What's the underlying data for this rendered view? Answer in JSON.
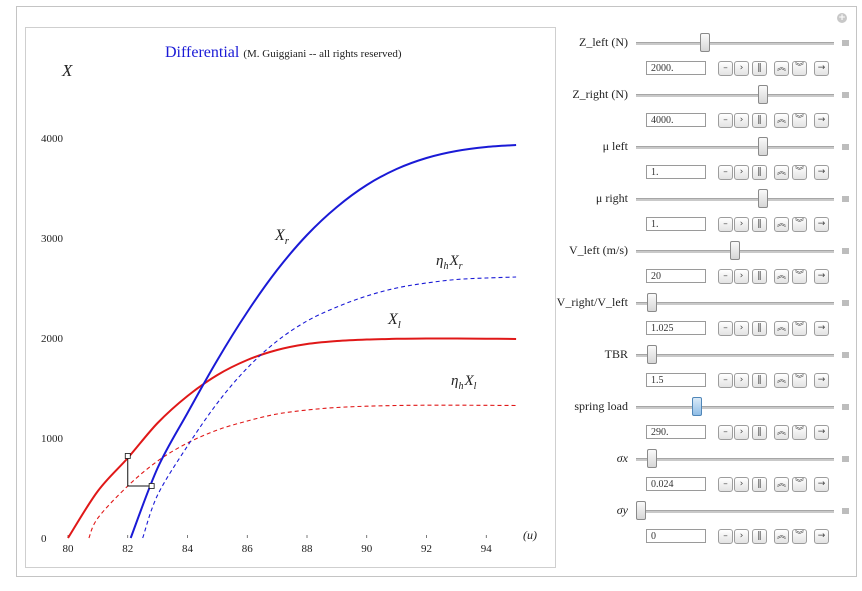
{
  "plot": {
    "title_main": "Differential",
    "title_sub": "(M. Guiggiani -- all rights reserved)",
    "y_axis_label": "X",
    "x_axis_label": "(u)",
    "x_ticks": [
      "80",
      "82",
      "84",
      "86",
      "88",
      "90",
      "92",
      "94"
    ],
    "y_ticks": [
      "0",
      "1000",
      "2000",
      "3000",
      "4000"
    ],
    "curve_labels": {
      "xr": {
        "main": "X",
        "sub": "r"
      },
      "ehxr": {
        "eta": "η",
        "h": "h",
        "main": "X",
        "sub": "r"
      },
      "xl": {
        "main": "X",
        "sub": "l"
      },
      "ehxl": {
        "eta": "η",
        "h": "h",
        "main": "X",
        "sub": "l"
      }
    },
    "colors": {
      "red": "#e01818",
      "blue": "#1a1ad6",
      "title": "#1a1ad6"
    }
  },
  "chart_data": {
    "type": "line",
    "xlabel": "(u)",
    "ylabel": "X",
    "xlim": [
      80,
      95
    ],
    "ylim": [
      0,
      4000
    ],
    "series": [
      {
        "name": "X_l",
        "style": "solid",
        "color": "#e01818",
        "x": [
          80,
          81,
          82,
          83,
          84,
          85,
          86,
          87,
          88,
          89,
          90,
          91,
          92,
          93,
          94,
          95
        ],
        "y": [
          0,
          470,
          800,
          1150,
          1420,
          1630,
          1780,
          1880,
          1940,
          1970,
          1985,
          1992,
          1995,
          1995,
          1993,
          1990
        ]
      },
      {
        "name": "η_h X_l",
        "style": "dashed",
        "color": "#e01818",
        "x": [
          80.7,
          81,
          82,
          83,
          84,
          85,
          86,
          87,
          88,
          89,
          90,
          91,
          92,
          93,
          94,
          95
        ],
        "y": [
          0,
          200,
          520,
          770,
          950,
          1080,
          1170,
          1240,
          1280,
          1305,
          1318,
          1325,
          1328,
          1328,
          1327,
          1325
        ]
      },
      {
        "name": "X_r",
        "style": "solid",
        "color": "#1a1ad6",
        "x": [
          82.1,
          83,
          84,
          85,
          86,
          87,
          88,
          89,
          90,
          91,
          92,
          93,
          94,
          95
        ],
        "y": [
          0,
          700,
          1250,
          1780,
          2260,
          2680,
          3030,
          3310,
          3530,
          3690,
          3800,
          3870,
          3910,
          3930
        ]
      },
      {
        "name": "η_h X_r",
        "style": "dashed",
        "color": "#1a1ad6",
        "x": [
          82.5,
          83,
          84,
          85,
          86,
          87,
          88,
          89,
          90,
          91,
          92,
          93,
          94,
          95
        ],
        "y": [
          0,
          430,
          920,
          1350,
          1700,
          1970,
          2170,
          2310,
          2420,
          2500,
          2550,
          2585,
          2600,
          2610
        ]
      }
    ],
    "marker": {
      "p1": [
        82,
        820
      ],
      "p2": [
        82.8,
        520
      ],
      "corner": [
        82,
        520
      ]
    }
  },
  "controls": [
    {
      "label": "Z_left (N)",
      "value": "2000.",
      "level": 0.34,
      "italic": false,
      "active": false
    },
    {
      "label": "Z_right (N)",
      "value": "4000.",
      "level": 0.65,
      "italic": false,
      "active": false
    },
    {
      "label": "μ left",
      "value": "1.",
      "level": 0.65,
      "italic": false,
      "active": false
    },
    {
      "label": "μ right",
      "value": "1.",
      "level": 0.65,
      "italic": false,
      "active": false
    },
    {
      "label": "V_left (m/s)",
      "value": "20",
      "level": 0.5,
      "italic": false,
      "active": false
    },
    {
      "label": "V_right/V_left",
      "value": "1.025",
      "level": 0.06,
      "italic": false,
      "active": false
    },
    {
      "label": "TBR",
      "value": "1.5",
      "level": 0.06,
      "italic": false,
      "active": false
    },
    {
      "label": "spring load",
      "value": "290.",
      "level": 0.3,
      "italic": false,
      "active": true
    },
    {
      "label": "σx",
      "value": "0.024",
      "level": 0.06,
      "italic": true,
      "active": false
    },
    {
      "label": "σy",
      "value": "0",
      "level": 0.0,
      "italic": true,
      "active": false
    }
  ],
  "buttons": [
    {
      "name": "minus-button",
      "glyph": "–"
    },
    {
      "name": "play-button",
      "glyph": "›"
    },
    {
      "name": "pause-button",
      "glyph": "‖"
    },
    {
      "name": "faster-button",
      "glyph": "︽"
    },
    {
      "name": "slower-button",
      "glyph": "︾"
    },
    {
      "name": "direction-button",
      "glyph": "→"
    }
  ],
  "icons": {
    "corner": "plus-circle-icon"
  }
}
